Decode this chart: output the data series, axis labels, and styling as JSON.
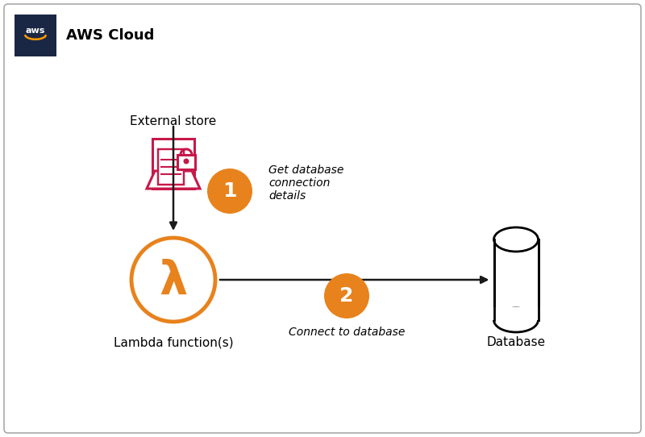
{
  "bg_color": "#ffffff",
  "border_color": "#aaaaaa",
  "aws_box_color": "#1a2744",
  "aws_cloud_text": "AWS Cloud",
  "external_store_text": "External store",
  "lambda_text": "Lambda function(s)",
  "database_text": "Database",
  "step1_text": "Get database\nconnection\ndetails",
  "step2_text": "Connect to database",
  "orange_color": "#E8821C",
  "crimson_color": "#C7184A",
  "arrow_color": "#1a1a1a",
  "fig_w": 8.0,
  "fig_h": 5.42,
  "dpi": 100
}
